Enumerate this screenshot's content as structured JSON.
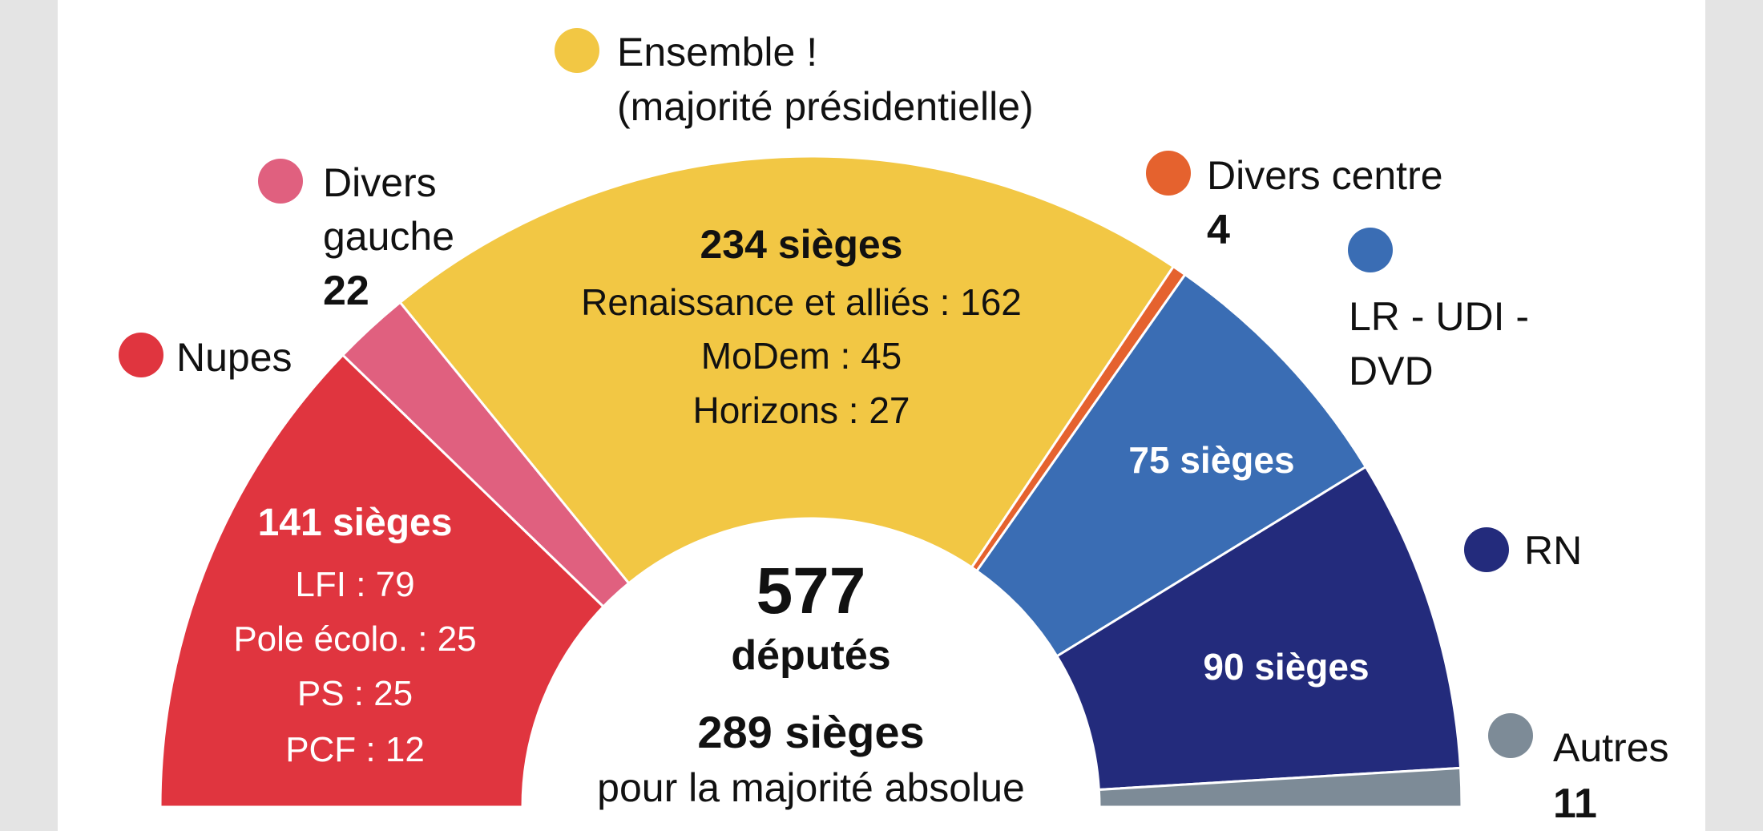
{
  "chart_data": {
    "type": "pie",
    "variant": "hemicycle",
    "total_label": "577",
    "total_unit": "députés",
    "majority_value": "289 sièges",
    "majority_text": "pour la majorité absolue",
    "series": [
      {
        "name": "Nupes",
        "value": 141,
        "color": "#e0353f",
        "legend": [
          "Nupes"
        ],
        "headline": "141 sièges",
        "details": [
          "LFI : 79",
          "Pole écolo. : 25",
          "PS : 25",
          "PCF : 12"
        ],
        "breakdown": [
          {
            "name": "LFI",
            "value": 79
          },
          {
            "name": "Pole écolo.",
            "value": 25
          },
          {
            "name": "PS",
            "value": 25
          },
          {
            "name": "PCF",
            "value": 12
          }
        ]
      },
      {
        "name": "Divers gauche",
        "value": 22,
        "color": "#e0607f",
        "legend": [
          "Divers",
          "gauche"
        ],
        "count_label": "22"
      },
      {
        "name": "Ensemble ! (majorité présidentielle)",
        "value": 234,
        "color": "#f2c744",
        "legend": [
          "Ensemble !",
          "(majorité présidentielle)"
        ],
        "headline": "234 sièges",
        "details": [
          "Renaissance et alliés : 162",
          "MoDem : 45",
          "Horizons : 27"
        ],
        "breakdown": [
          {
            "name": "Renaissance et alliés",
            "value": 162
          },
          {
            "name": "MoDem",
            "value": 45
          },
          {
            "name": "Horizons",
            "value": 27
          }
        ]
      },
      {
        "name": "Divers centre",
        "value": 4,
        "color": "#e5622e",
        "legend": [
          "Divers centre"
        ],
        "count_label": "4"
      },
      {
        "name": "LR - UDI - DVD",
        "value": 75,
        "color": "#3a6db4",
        "legend": [
          "LR - UDI -",
          "DVD"
        ],
        "headline": "75 sièges"
      },
      {
        "name": "RN",
        "value": 90,
        "color": "#232b7c",
        "legend": [
          "RN"
        ],
        "headline": "90 sièges"
      },
      {
        "name": "Autres",
        "value": 11,
        "color": "#7d8b97",
        "legend": [
          "Autres"
        ],
        "count_label": "11"
      }
    ]
  }
}
